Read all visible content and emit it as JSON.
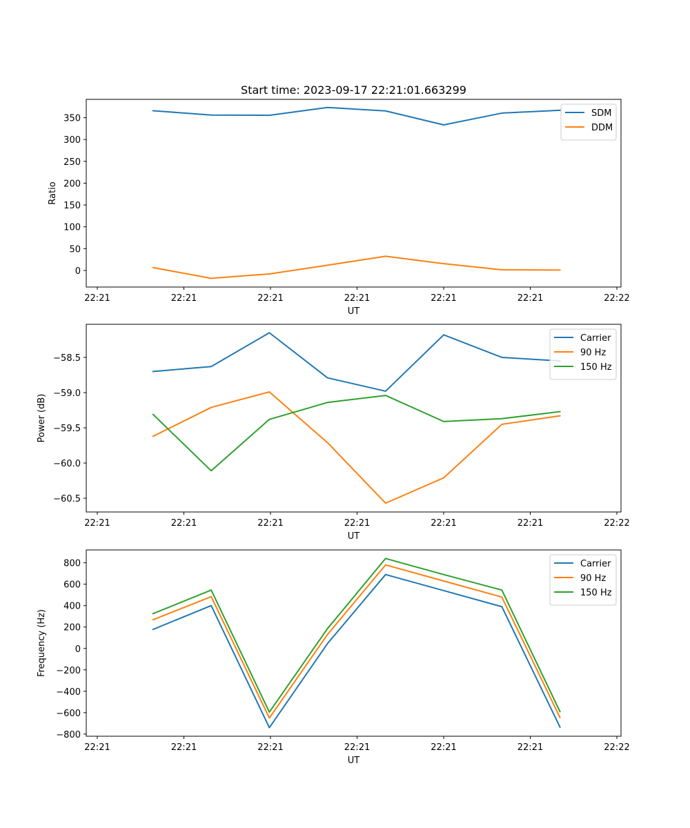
{
  "figure_title": "Start time: 2023-09-17 22:21:01.663299",
  "chart_data": [
    {
      "type": "line",
      "xlabel": "UT",
      "ylabel": "Ratio",
      "x_tick_labels": [
        "22:21",
        "22:21",
        "22:21",
        "22:21",
        "22:21",
        "22:21",
        "22:22"
      ],
      "y_ticks": [
        0,
        50,
        100,
        150,
        200,
        250,
        300,
        350
      ],
      "y_tick_labels": [
        "0",
        "50",
        "100",
        "150",
        "200",
        "250",
        "300",
        "350"
      ],
      "ylim": [
        -38,
        392
      ],
      "xlim": [
        -0.65,
        8.55
      ],
      "x": [
        0.5,
        1.5,
        2.5,
        3.5,
        4.5,
        5.5,
        6.5,
        7.5
      ],
      "legend_position": "upper-right",
      "series": [
        {
          "name": "SDM",
          "color": "#1f77b4",
          "values": [
            366,
            356,
            355.5,
            373.5,
            365.5,
            333.5,
            360.5,
            367
          ]
        },
        {
          "name": "DDM",
          "color": "#ff7f0e",
          "values": [
            6.5,
            -18,
            -8,
            12,
            32.5,
            15.5,
            1.5,
            1
          ]
        }
      ]
    },
    {
      "type": "line",
      "xlabel": "UT",
      "ylabel": "Power (dB)",
      "x_tick_labels": [
        "22:21",
        "22:21",
        "22:21",
        "22:21",
        "22:21",
        "22:21",
        "22:22"
      ],
      "y_ticks": [
        -60.5,
        -60.0,
        -59.5,
        -59.0,
        -58.5
      ],
      "y_tick_labels": [
        "−60.5",
        "−60.0",
        "−59.5",
        "−59.0",
        "−58.5"
      ],
      "ylim": [
        -60.695,
        -58.03
      ],
      "xlim": [
        -0.65,
        8.55
      ],
      "x": [
        0.5,
        1.5,
        2.5,
        3.5,
        4.5,
        5.5,
        6.5,
        7.5
      ],
      "legend_position": "upper-right",
      "series": [
        {
          "name": "Carrier",
          "color": "#1f77b4",
          "values": [
            -58.7,
            -58.63,
            -58.15,
            -58.79,
            -58.98,
            -58.18,
            -58.5,
            -58.55
          ]
        },
        {
          "name": "90 Hz",
          "color": "#ff7f0e",
          "values": [
            -59.62,
            -59.21,
            -58.99,
            -59.71,
            -60.57,
            -60.21,
            -59.45,
            -59.33
          ]
        },
        {
          "name": "150 Hz",
          "color": "#2ca02c",
          "values": [
            -59.31,
            -60.11,
            -59.38,
            -59.14,
            -59.04,
            -59.41,
            -59.37,
            -59.27
          ]
        }
      ]
    },
    {
      "type": "line",
      "xlabel": "UT",
      "ylabel": "Frequency (Hz)",
      "x_tick_labels": [
        "22:21",
        "22:21",
        "22:21",
        "22:21",
        "22:21",
        "22:21",
        "22:22"
      ],
      "y_ticks": [
        -800,
        -600,
        -400,
        -200,
        0,
        200,
        400,
        600,
        800
      ],
      "y_tick_labels": [
        "−800",
        "−600",
        "−400",
        "−200",
        "0",
        "200",
        "400",
        "600",
        "800"
      ],
      "ylim": [
        -820,
        920
      ],
      "xlim": [
        -0.65,
        8.55
      ],
      "x": [
        0.5,
        1.5,
        2.5,
        3.5,
        4.5,
        5.5,
        6.5,
        7.5
      ],
      "legend_position": "upper-right",
      "series": [
        {
          "name": "Carrier",
          "color": "#1f77b4",
          "values": [
            178,
            400,
            -740,
            45,
            690,
            540,
            390,
            -735
          ]
        },
        {
          "name": "90 Hz",
          "color": "#ff7f0e",
          "values": [
            268,
            484,
            -650,
            130,
            780,
            630,
            480,
            -645
          ]
        },
        {
          "name": "150 Hz",
          "color": "#2ca02c",
          "values": [
            325,
            545,
            -595,
            185,
            840,
            690,
            545,
            -590
          ]
        }
      ]
    }
  ]
}
